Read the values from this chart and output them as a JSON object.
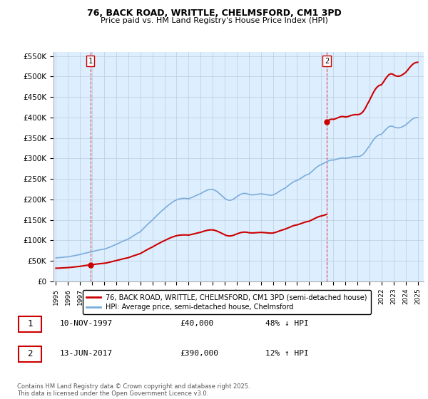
{
  "title1": "76, BACK ROAD, WRITTLE, CHELMSFORD, CM1 3PD",
  "title2": "Price paid vs. HM Land Registry's House Price Index (HPI)",
  "sale1_date": "10-NOV-1997",
  "sale1_price": 40000,
  "sale1_year": 1997.86,
  "sale2_date": "13-JUN-2017",
  "sale2_price": 390000,
  "sale2_year": 2017.45,
  "legend1": "76, BACK ROAD, WRITTLE, CHELMSFORD, CM1 3PD (semi-detached house)",
  "legend2": "HPI: Average price, semi-detached house, Chelmsford",
  "footer": "Contains HM Land Registry data © Crown copyright and database right 2025.\nThis data is licensed under the Open Government Licence v3.0.",
  "red_color": "#cc0000",
  "blue_color": "#7aacda",
  "bg_plot_color": "#ddeeff",
  "background_color": "#ffffff",
  "grid_color": "#bbccdd",
  "ylim": [
    0,
    560000
  ],
  "xlim": [
    1994.8,
    2025.5
  ],
  "yticks": [
    0,
    50000,
    100000,
    150000,
    200000,
    250000,
    300000,
    350000,
    400000,
    450000,
    500000,
    550000
  ],
  "ytick_labels": [
    "£0",
    "£50K",
    "£100K",
    "£150K",
    "£200K",
    "£250K",
    "£300K",
    "£350K",
    "£400K",
    "£450K",
    "£500K",
    "£550K"
  ],
  "xticks": [
    1995,
    1996,
    1997,
    1998,
    1999,
    2000,
    2001,
    2002,
    2003,
    2004,
    2005,
    2006,
    2007,
    2008,
    2009,
    2010,
    2011,
    2012,
    2013,
    2014,
    2015,
    2016,
    2017,
    2018,
    2019,
    2020,
    2021,
    2022,
    2023,
    2024,
    2025
  ],
  "hpi_index": [
    [
      1995.0,
      57.0
    ],
    [
      1995.08,
      57.2
    ],
    [
      1995.17,
      57.4
    ],
    [
      1995.25,
      57.5
    ],
    [
      1995.33,
      57.8
    ],
    [
      1995.42,
      58.0
    ],
    [
      1995.5,
      58.3
    ],
    [
      1995.58,
      58.6
    ],
    [
      1995.67,
      58.9
    ],
    [
      1995.75,
      59.1
    ],
    [
      1995.83,
      59.3
    ],
    [
      1995.92,
      59.6
    ],
    [
      1996.0,
      59.8
    ],
    [
      1996.08,
      60.2
    ],
    [
      1996.17,
      60.6
    ],
    [
      1996.25,
      61.0
    ],
    [
      1996.33,
      61.4
    ],
    [
      1996.42,
      61.9
    ],
    [
      1996.5,
      62.4
    ],
    [
      1996.58,
      62.9
    ],
    [
      1996.67,
      63.4
    ],
    [
      1996.75,
      63.9
    ],
    [
      1996.83,
      64.3
    ],
    [
      1996.92,
      64.8
    ],
    [
      1997.0,
      65.3
    ],
    [
      1997.08,
      66.0
    ],
    [
      1997.17,
      66.7
    ],
    [
      1997.25,
      67.4
    ],
    [
      1997.33,
      68.1
    ],
    [
      1997.42,
      68.7
    ],
    [
      1997.5,
      69.3
    ],
    [
      1997.58,
      69.9
    ],
    [
      1997.67,
      70.4
    ],
    [
      1997.75,
      70.9
    ],
    [
      1997.83,
      71.3
    ],
    [
      1997.86,
      71.5
    ],
    [
      1997.92,
      71.8
    ],
    [
      1998.0,
      72.3
    ],
    [
      1998.08,
      73.0
    ],
    [
      1998.17,
      73.7
    ],
    [
      1998.25,
      74.3
    ],
    [
      1998.33,
      74.9
    ],
    [
      1998.42,
      75.4
    ],
    [
      1998.5,
      76.0
    ],
    [
      1998.58,
      76.5
    ],
    [
      1998.67,
      77.0
    ],
    [
      1998.75,
      77.4
    ],
    [
      1998.83,
      77.8
    ],
    [
      1998.92,
      78.1
    ],
    [
      1999.0,
      78.4
    ],
    [
      1999.08,
      79.2
    ],
    [
      1999.17,
      80.0
    ],
    [
      1999.25,
      80.8
    ],
    [
      1999.33,
      81.8
    ],
    [
      1999.42,
      82.8
    ],
    [
      1999.5,
      83.8
    ],
    [
      1999.58,
      84.9
    ],
    [
      1999.67,
      86.0
    ],
    [
      1999.75,
      87.1
    ],
    [
      1999.83,
      88.1
    ],
    [
      1999.92,
      89.0
    ],
    [
      2000.0,
      89.9
    ],
    [
      2000.08,
      91.2
    ],
    [
      2000.17,
      92.4
    ],
    [
      2000.25,
      93.6
    ],
    [
      2000.33,
      94.8
    ],
    [
      2000.42,
      96.0
    ],
    [
      2000.5,
      97.1
    ],
    [
      2000.58,
      98.2
    ],
    [
      2000.67,
      99.2
    ],
    [
      2000.75,
      100.2
    ],
    [
      2000.83,
      101.1
    ],
    [
      2000.92,
      102.0
    ],
    [
      2001.0,
      102.9
    ],
    [
      2001.08,
      104.5
    ],
    [
      2001.17,
      106.1
    ],
    [
      2001.25,
      107.7
    ],
    [
      2001.33,
      109.3
    ],
    [
      2001.42,
      110.9
    ],
    [
      2001.5,
      112.5
    ],
    [
      2001.58,
      114.0
    ],
    [
      2001.67,
      115.5
    ],
    [
      2001.75,
      117.0
    ],
    [
      2001.83,
      118.4
    ],
    [
      2001.92,
      119.7
    ],
    [
      2002.0,
      121.0
    ],
    [
      2002.08,
      123.5
    ],
    [
      2002.17,
      126.0
    ],
    [
      2002.25,
      128.5
    ],
    [
      2002.33,
      131.0
    ],
    [
      2002.42,
      133.5
    ],
    [
      2002.5,
      136.0
    ],
    [
      2002.58,
      138.4
    ],
    [
      2002.67,
      140.8
    ],
    [
      2002.75,
      143.1
    ],
    [
      2002.83,
      145.3
    ],
    [
      2002.92,
      147.4
    ],
    [
      2003.0,
      149.5
    ],
    [
      2003.08,
      152.0
    ],
    [
      2003.17,
      154.5
    ],
    [
      2003.25,
      157.0
    ],
    [
      2003.33,
      159.5
    ],
    [
      2003.42,
      162.0
    ],
    [
      2003.5,
      164.4
    ],
    [
      2003.58,
      166.7
    ],
    [
      2003.67,
      169.0
    ],
    [
      2003.75,
      171.2
    ],
    [
      2003.83,
      173.3
    ],
    [
      2003.92,
      175.3
    ],
    [
      2004.0,
      177.3
    ],
    [
      2004.08,
      179.5
    ],
    [
      2004.17,
      181.7
    ],
    [
      2004.25,
      183.8
    ],
    [
      2004.33,
      185.9
    ],
    [
      2004.42,
      187.9
    ],
    [
      2004.5,
      189.8
    ],
    [
      2004.58,
      191.6
    ],
    [
      2004.67,
      193.3
    ],
    [
      2004.75,
      194.9
    ],
    [
      2004.83,
      196.4
    ],
    [
      2004.92,
      197.7
    ],
    [
      2005.0,
      199.0
    ],
    [
      2005.08,
      199.8
    ],
    [
      2005.17,
      200.5
    ],
    [
      2005.25,
      201.1
    ],
    [
      2005.33,
      201.6
    ],
    [
      2005.42,
      202.0
    ],
    [
      2005.5,
      202.3
    ],
    [
      2005.58,
      202.5
    ],
    [
      2005.67,
      202.5
    ],
    [
      2005.75,
      202.4
    ],
    [
      2005.83,
      202.2
    ],
    [
      2005.92,
      201.8
    ],
    [
      2006.0,
      201.4
    ],
    [
      2006.08,
      202.3
    ],
    [
      2006.17,
      203.3
    ],
    [
      2006.25,
      204.3
    ],
    [
      2006.33,
      205.4
    ],
    [
      2006.42,
      206.5
    ],
    [
      2006.5,
      207.6
    ],
    [
      2006.58,
      208.8
    ],
    [
      2006.67,
      209.9
    ],
    [
      2006.75,
      211.0
    ],
    [
      2006.83,
      212.0
    ],
    [
      2006.92,
      213.0
    ],
    [
      2007.0,
      213.9
    ],
    [
      2007.08,
      215.4
    ],
    [
      2007.17,
      216.9
    ],
    [
      2007.25,
      218.3
    ],
    [
      2007.33,
      219.6
    ],
    [
      2007.42,
      220.8
    ],
    [
      2007.5,
      221.9
    ],
    [
      2007.58,
      222.8
    ],
    [
      2007.67,
      223.6
    ],
    [
      2007.75,
      224.1
    ],
    [
      2007.83,
      224.4
    ],
    [
      2007.92,
      224.5
    ],
    [
      2008.0,
      224.4
    ],
    [
      2008.08,
      223.5
    ],
    [
      2008.17,
      222.4
    ],
    [
      2008.25,
      221.1
    ],
    [
      2008.33,
      219.5
    ],
    [
      2008.42,
      217.7
    ],
    [
      2008.5,
      215.8
    ],
    [
      2008.58,
      213.7
    ],
    [
      2008.67,
      211.5
    ],
    [
      2008.75,
      209.2
    ],
    [
      2008.83,
      206.9
    ],
    [
      2008.92,
      204.6
    ],
    [
      2009.0,
      202.4
    ],
    [
      2009.08,
      200.8
    ],
    [
      2009.17,
      199.5
    ],
    [
      2009.25,
      198.5
    ],
    [
      2009.33,
      197.9
    ],
    [
      2009.42,
      197.7
    ],
    [
      2009.5,
      198.0
    ],
    [
      2009.58,
      198.7
    ],
    [
      2009.67,
      199.8
    ],
    [
      2009.75,
      201.2
    ],
    [
      2009.83,
      202.9
    ],
    [
      2009.92,
      204.7
    ],
    [
      2010.0,
      206.6
    ],
    [
      2010.08,
      208.3
    ],
    [
      2010.17,
      209.9
    ],
    [
      2010.25,
      211.3
    ],
    [
      2010.33,
      212.5
    ],
    [
      2010.42,
      213.4
    ],
    [
      2010.5,
      214.1
    ],
    [
      2010.58,
      214.5
    ],
    [
      2010.67,
      214.6
    ],
    [
      2010.75,
      214.4
    ],
    [
      2010.83,
      213.8
    ],
    [
      2010.92,
      213.0
    ],
    [
      2011.0,
      212.0
    ],
    [
      2011.08,
      211.5
    ],
    [
      2011.17,
      211.2
    ],
    [
      2011.25,
      211.0
    ],
    [
      2011.33,
      211.0
    ],
    [
      2011.42,
      211.2
    ],
    [
      2011.5,
      211.5
    ],
    [
      2011.58,
      211.9
    ],
    [
      2011.67,
      212.3
    ],
    [
      2011.75,
      212.7
    ],
    [
      2011.83,
      213.0
    ],
    [
      2011.92,
      213.2
    ],
    [
      2012.0,
      213.3
    ],
    [
      2012.08,
      213.2
    ],
    [
      2012.17,
      213.0
    ],
    [
      2012.25,
      212.7
    ],
    [
      2012.33,
      212.3
    ],
    [
      2012.42,
      211.8
    ],
    [
      2012.5,
      211.3
    ],
    [
      2012.58,
      210.8
    ],
    [
      2012.67,
      210.4
    ],
    [
      2012.75,
      210.2
    ],
    [
      2012.83,
      210.1
    ],
    [
      2012.92,
      210.3
    ],
    [
      2013.0,
      210.7
    ],
    [
      2013.08,
      211.6
    ],
    [
      2013.17,
      212.8
    ],
    [
      2013.25,
      214.2
    ],
    [
      2013.33,
      215.7
    ],
    [
      2013.42,
      217.3
    ],
    [
      2013.5,
      219.0
    ],
    [
      2013.58,
      220.6
    ],
    [
      2013.67,
      222.2
    ],
    [
      2013.75,
      223.7
    ],
    [
      2013.83,
      225.1
    ],
    [
      2013.92,
      226.3
    ],
    [
      2014.0,
      227.4
    ],
    [
      2014.08,
      229.2
    ],
    [
      2014.17,
      231.1
    ],
    [
      2014.25,
      233.1
    ],
    [
      2014.33,
      235.1
    ],
    [
      2014.42,
      237.0
    ],
    [
      2014.5,
      238.9
    ],
    [
      2014.58,
      240.6
    ],
    [
      2014.67,
      242.2
    ],
    [
      2014.75,
      243.5
    ],
    [
      2014.83,
      244.6
    ],
    [
      2014.92,
      245.4
    ],
    [
      2015.0,
      246.0
    ],
    [
      2015.08,
      247.4
    ],
    [
      2015.17,
      248.9
    ],
    [
      2015.25,
      250.4
    ],
    [
      2015.33,
      252.0
    ],
    [
      2015.42,
      253.6
    ],
    [
      2015.5,
      255.2
    ],
    [
      2015.58,
      256.7
    ],
    [
      2015.67,
      258.1
    ],
    [
      2015.75,
      259.4
    ],
    [
      2015.83,
      260.5
    ],
    [
      2015.92,
      261.3
    ],
    [
      2016.0,
      262.0
    ],
    [
      2016.08,
      264.1
    ],
    [
      2016.17,
      266.3
    ],
    [
      2016.25,
      268.6
    ],
    [
      2016.33,
      270.9
    ],
    [
      2016.42,
      273.2
    ],
    [
      2016.5,
      275.4
    ],
    [
      2016.58,
      277.5
    ],
    [
      2016.67,
      279.4
    ],
    [
      2016.75,
      281.2
    ],
    [
      2016.83,
      282.7
    ],
    [
      2016.92,
      283.9
    ],
    [
      2017.0,
      284.8
    ],
    [
      2017.08,
      286.0
    ],
    [
      2017.17,
      287.3
    ],
    [
      2017.25,
      288.7
    ],
    [
      2017.33,
      290.1
    ],
    [
      2017.42,
      291.4
    ],
    [
      2017.45,
      291.8
    ],
    [
      2017.5,
      292.7
    ],
    [
      2017.58,
      293.8
    ],
    [
      2017.67,
      294.8
    ],
    [
      2017.75,
      295.5
    ],
    [
      2017.83,
      295.9
    ],
    [
      2017.92,
      296.0
    ],
    [
      2018.0,
      295.8
    ],
    [
      2018.08,
      296.2
    ],
    [
      2018.17,
      296.8
    ],
    [
      2018.25,
      297.5
    ],
    [
      2018.33,
      298.3
    ],
    [
      2018.42,
      299.1
    ],
    [
      2018.5,
      299.8
    ],
    [
      2018.58,
      300.4
    ],
    [
      2018.67,
      300.8
    ],
    [
      2018.75,
      301.0
    ],
    [
      2018.83,
      300.9
    ],
    [
      2018.92,
      300.6
    ],
    [
      2019.0,
      300.1
    ],
    [
      2019.08,
      300.3
    ],
    [
      2019.17,
      300.7
    ],
    [
      2019.25,
      301.2
    ],
    [
      2019.33,
      301.8
    ],
    [
      2019.42,
      302.4
    ],
    [
      2019.5,
      303.0
    ],
    [
      2019.58,
      303.5
    ],
    [
      2019.67,
      303.9
    ],
    [
      2019.75,
      304.2
    ],
    [
      2019.83,
      304.4
    ],
    [
      2019.92,
      304.4
    ],
    [
      2020.0,
      304.3
    ],
    [
      2020.08,
      304.5
    ],
    [
      2020.17,
      305.0
    ],
    [
      2020.25,
      305.8
    ],
    [
      2020.33,
      307.0
    ],
    [
      2020.42,
      308.7
    ],
    [
      2020.5,
      310.8
    ],
    [
      2020.58,
      313.5
    ],
    [
      2020.67,
      316.6
    ],
    [
      2020.75,
      320.1
    ],
    [
      2020.83,
      323.7
    ],
    [
      2020.92,
      327.1
    ],
    [
      2021.0,
      330.2
    ],
    [
      2021.08,
      334.0
    ],
    [
      2021.17,
      337.8
    ],
    [
      2021.25,
      341.5
    ],
    [
      2021.33,
      345.0
    ],
    [
      2021.42,
      348.2
    ],
    [
      2021.5,
      351.0
    ],
    [
      2021.58,
      353.4
    ],
    [
      2021.67,
      355.3
    ],
    [
      2021.75,
      356.8
    ],
    [
      2021.83,
      357.8
    ],
    [
      2021.92,
      358.5
    ],
    [
      2022.0,
      359.0
    ],
    [
      2022.08,
      361.5
    ],
    [
      2022.17,
      364.2
    ],
    [
      2022.25,
      367.0
    ],
    [
      2022.33,
      369.8
    ],
    [
      2022.42,
      372.4
    ],
    [
      2022.5,
      374.7
    ],
    [
      2022.58,
      376.6
    ],
    [
      2022.67,
      378.0
    ],
    [
      2022.75,
      378.8
    ],
    [
      2022.83,
      378.9
    ],
    [
      2022.92,
      378.3
    ],
    [
      2023.0,
      377.2
    ],
    [
      2023.08,
      376.2
    ],
    [
      2023.17,
      375.4
    ],
    [
      2023.25,
      374.8
    ],
    [
      2023.33,
      374.5
    ],
    [
      2023.42,
      374.5
    ],
    [
      2023.5,
      374.9
    ],
    [
      2023.58,
      375.5
    ],
    [
      2023.67,
      376.4
    ],
    [
      2023.75,
      377.5
    ],
    [
      2023.83,
      378.7
    ],
    [
      2023.92,
      380.0
    ],
    [
      2024.0,
      381.4
    ],
    [
      2024.08,
      383.5
    ],
    [
      2024.17,
      385.7
    ],
    [
      2024.25,
      388.0
    ],
    [
      2024.33,
      390.3
    ],
    [
      2024.42,
      392.5
    ],
    [
      2024.5,
      394.5
    ],
    [
      2024.58,
      396.2
    ],
    [
      2024.67,
      397.6
    ],
    [
      2024.75,
      398.7
    ],
    [
      2024.83,
      399.4
    ],
    [
      2024.92,
      399.8
    ],
    [
      2025.0,
      400.0
    ]
  ]
}
